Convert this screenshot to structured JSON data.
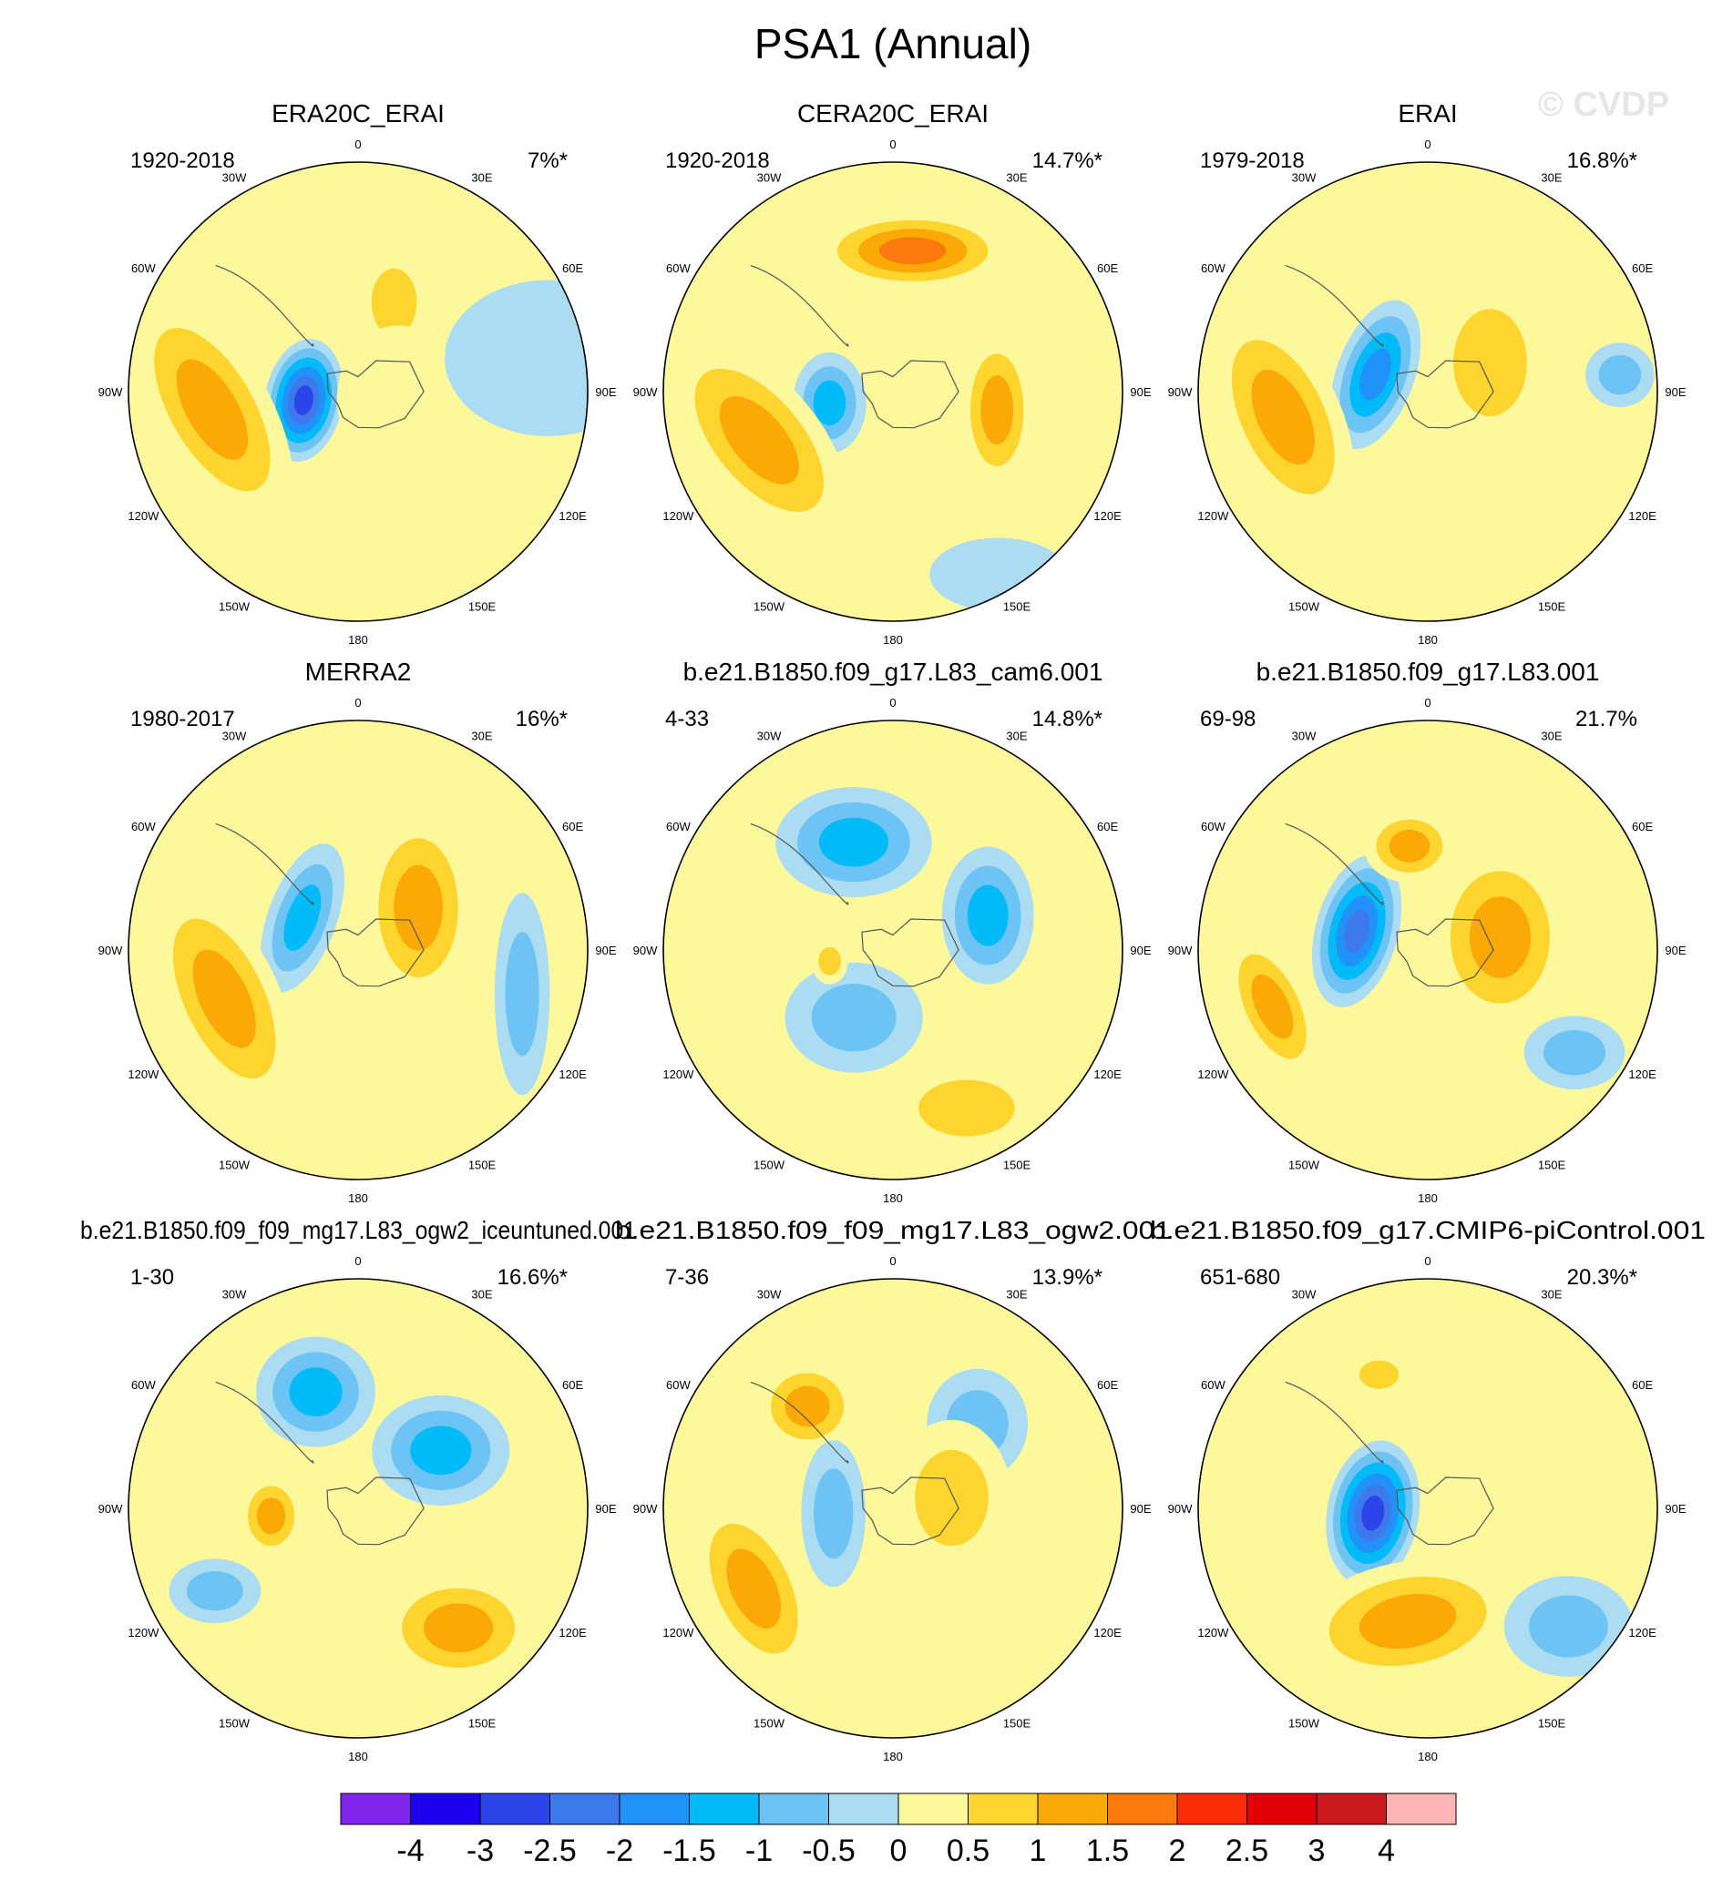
{
  "figure": {
    "title": "PSA1 (Annual)",
    "watermark": "© CVDP"
  },
  "longitude_labels": [
    "0",
    "30E",
    "60E",
    "90E",
    "120E",
    "150E",
    "180",
    "150W",
    "120W",
    "90W",
    "60W",
    "30W"
  ],
  "chart_data": {
    "type": "polar-contour",
    "title": "PSA1 (Annual)",
    "projection": "south polar stereographic",
    "panels": [
      {
        "title": "ERA20C_ERAI",
        "years": "1920-2018",
        "pct_variance": "7%*",
        "features": [
          {
            "lon": -99,
            "r": 0.24,
            "value": -3.0,
            "sx": 0.17,
            "sy": 0.27,
            "rot": 10
          },
          {
            "lon": -97,
            "r": 0.64,
            "value": 1.5,
            "sx": 0.25,
            "sy": 0.55,
            "rot": -30
          },
          {
            "lon": 22,
            "r": 0.42,
            "value": 1.0,
            "sx": 0.16,
            "sy": 0.24,
            "rot": 0
          },
          {
            "lon": 100,
            "r": 0.18,
            "value": 0.5,
            "sx": 0.27,
            "sy": 0.32,
            "rot": 0
          },
          {
            "lon": 80,
            "r": 0.84,
            "value": -0.5,
            "sx": 0.45,
            "sy": 0.34,
            "rot": 0
          }
        ]
      },
      {
        "title": "CERA20C_ERAI",
        "years": "1920-2018",
        "pct_variance": "14.7%*",
        "features": [
          {
            "lon": 8,
            "r": 0.62,
            "value": 2.0,
            "sx": 0.42,
            "sy": 0.17,
            "rot": 0
          },
          {
            "lon": -100,
            "r": 0.28,
            "value": -1.5,
            "sx": 0.16,
            "sy": 0.22,
            "rot": 0
          },
          {
            "lon": -110,
            "r": 0.62,
            "value": 1.5,
            "sx": 0.26,
            "sy": 0.52,
            "rot": -40
          },
          {
            "lon": 100,
            "r": 0.46,
            "value": 1.5,
            "sx": 0.16,
            "sy": 0.34,
            "rot": 0
          },
          {
            "lon": 150,
            "r": 0.92,
            "value": -0.5,
            "sx": 0.3,
            "sy": 0.16,
            "rot": 0
          }
        ]
      },
      {
        "title": "ERAI",
        "years": "1979-2018",
        "pct_variance": "16.8%*",
        "features": [
          {
            "lon": -72,
            "r": 0.24,
            "value": -2.0,
            "sx": 0.17,
            "sy": 0.34,
            "rot": 20
          },
          {
            "lon": -100,
            "r": 0.64,
            "value": 1.5,
            "sx": 0.25,
            "sy": 0.5,
            "rot": -25
          },
          {
            "lon": 65,
            "r": 0.3,
            "value": 1.0,
            "sx": 0.26,
            "sy": 0.38,
            "rot": 0
          },
          {
            "lon": 85,
            "r": 0.84,
            "value": -1.0,
            "sx": 0.15,
            "sy": 0.14,
            "rot": 0
          }
        ]
      },
      {
        "title": "MERRA2",
        "years": "1980-2017",
        "pct_variance": "16%*",
        "features": [
          {
            "lon": -60,
            "r": 0.28,
            "value": -1.5,
            "sx": 0.15,
            "sy": 0.34,
            "rot": 20
          },
          {
            "lon": 55,
            "r": 0.32,
            "value": 1.5,
            "sx": 0.24,
            "sy": 0.42,
            "rot": 0
          },
          {
            "lon": -110,
            "r": 0.62,
            "value": 1.5,
            "sx": 0.24,
            "sy": 0.52,
            "rot": -25
          },
          {
            "lon": 105,
            "r": 0.74,
            "value": -1.0,
            "sx": 0.12,
            "sy": 0.44,
            "rot": 0
          }
        ]
      },
      {
        "title": "b.e21.B1850.f09_g17.L83_cam6.001",
        "years": "4-33",
        "pct_variance": "14.8%*",
        "features": [
          {
            "lon": -20,
            "r": 0.5,
            "value": -1.5,
            "sx": 0.34,
            "sy": 0.24,
            "rot": 0
          },
          {
            "lon": 70,
            "r": 0.44,
            "value": -1.5,
            "sx": 0.2,
            "sy": 0.3,
            "rot": 0
          },
          {
            "lon": -150,
            "r": 0.34,
            "value": -1.0,
            "sx": 0.3,
            "sy": 0.24,
            "rot": 0
          },
          {
            "lon": 155,
            "r": 0.76,
            "value": 1.0,
            "sx": 0.34,
            "sy": 0.2,
            "rot": 0
          },
          {
            "lon": -100,
            "r": 0.28,
            "value": 1.0,
            "sx": 0.08,
            "sy": 0.1,
            "rot": 0
          }
        ]
      },
      {
        "title": "b.e21.B1850.f09_g17.L83.001",
        "years": "69-98",
        "pct_variance": "21.7%",
        "features": [
          {
            "lon": -75,
            "r": 0.32,
            "value": -2.5,
            "sx": 0.18,
            "sy": 0.34,
            "rot": 15
          },
          {
            "lon": 80,
            "r": 0.32,
            "value": 1.5,
            "sx": 0.3,
            "sy": 0.4,
            "rot": 0
          },
          {
            "lon": -10,
            "r": 0.46,
            "value": 1.5,
            "sx": 0.2,
            "sy": 0.16,
            "rot": 0
          },
          {
            "lon": -110,
            "r": 0.72,
            "value": 1.5,
            "sx": 0.16,
            "sy": 0.34,
            "rot": -25
          },
          {
            "lon": 125,
            "r": 0.78,
            "value": -1.0,
            "sx": 0.22,
            "sy": 0.16,
            "rot": 0
          }
        ]
      },
      {
        "title": "b.e21.B1850.f09_f09_mg17.L83_ogw2_iceuntuned.001",
        "years": "1-30",
        "pct_variance": "16.6%*",
        "features": [
          {
            "lon": -20,
            "r": 0.54,
            "value": -1.5,
            "sx": 0.26,
            "sy": 0.24,
            "rot": 0
          },
          {
            "lon": 55,
            "r": 0.44,
            "value": -1.5,
            "sx": 0.3,
            "sy": 0.24,
            "rot": 0
          },
          {
            "lon": -95,
            "r": 0.38,
            "value": 1.5,
            "sx": 0.14,
            "sy": 0.18,
            "rot": 0
          },
          {
            "lon": 140,
            "r": 0.68,
            "value": 1.5,
            "sx": 0.34,
            "sy": 0.24,
            "rot": 0
          },
          {
            "lon": -120,
            "r": 0.72,
            "value": -1.0,
            "sx": 0.2,
            "sy": 0.14,
            "rot": 0
          }
        ]
      },
      {
        "title": "b.e21.B1850.f09_f09_mg17.L83_ogw2.001",
        "years": "7-36",
        "pct_variance": "13.9%*",
        "features": [
          {
            "lon": -40,
            "r": 0.58,
            "value": 1.5,
            "sx": 0.22,
            "sy": 0.2,
            "rot": 0
          },
          {
            "lon": 45,
            "r": 0.52,
            "value": -1.0,
            "sx": 0.22,
            "sy": 0.24,
            "rot": 0
          },
          {
            "lon": -95,
            "r": 0.26,
            "value": -1.0,
            "sx": 0.14,
            "sy": 0.32,
            "rot": 0
          },
          {
            "lon": -120,
            "r": 0.7,
            "value": 1.5,
            "sx": 0.22,
            "sy": 0.42,
            "rot": -25
          },
          {
            "lon": 80,
            "r": 0.26,
            "value": 1.0,
            "sx": 0.26,
            "sy": 0.34,
            "rot": 0
          }
        ]
      },
      {
        "title": "b.e21.B1850.f09_g17.CMIP6-piControl.001",
        "years": "651-680",
        "pct_variance": "20.3%*",
        "features": [
          {
            "lon": -95,
            "r": 0.24,
            "value": -3.0,
            "sx": 0.2,
            "sy": 0.32,
            "rot": 10
          },
          {
            "lon": -170,
            "r": 0.5,
            "value": 1.5,
            "sx": 0.48,
            "sy": 0.26,
            "rot": -10
          },
          {
            "lon": -20,
            "r": 0.62,
            "value": 1.0,
            "sx": 0.14,
            "sy": 0.1,
            "rot": 0
          },
          {
            "lon": 130,
            "r": 0.8,
            "value": -1.0,
            "sx": 0.28,
            "sy": 0.22,
            "rot": 0
          }
        ]
      }
    ],
    "colorbar": {
      "tick_labels": [
        "-4",
        "-3",
        "-2.5",
        "-2",
        "-1.5",
        "-1",
        "-0.5",
        "0",
        "0.5",
        "1",
        "1.5",
        "2",
        "2.5",
        "3",
        "4"
      ],
      "levels": [
        -4,
        -3,
        -2.5,
        -2,
        -1.5,
        -1,
        -0.5,
        0,
        0.5,
        1,
        1.5,
        2,
        2.5,
        3,
        4
      ],
      "colors": [
        "#8026ea",
        "#1d00ee",
        "#2d44e8",
        "#3d79ea",
        "#2193f8",
        "#00bbf8",
        "#6dc4f4",
        "#acdcf2",
        "#fdf89b",
        "#fdd52e",
        "#fba907",
        "#fb7a0d",
        "#fb2c08",
        "#e10008",
        "#ca1a1d",
        "#feb5b5"
      ]
    }
  }
}
